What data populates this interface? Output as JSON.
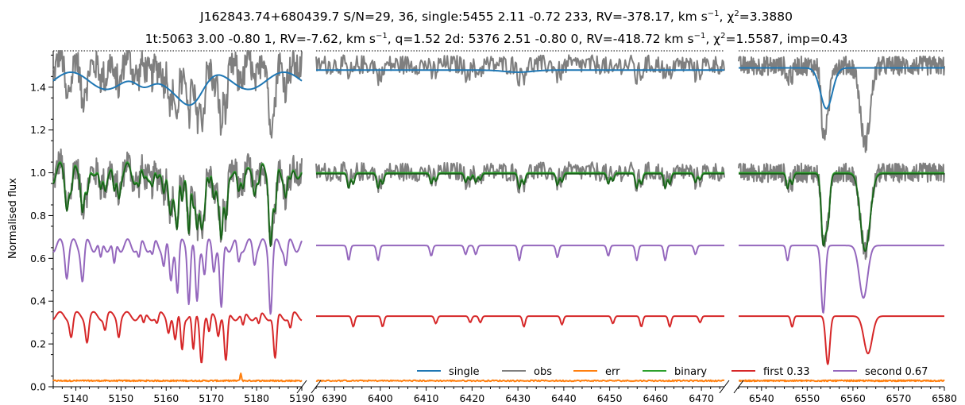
{
  "chart_data": {
    "type": "line",
    "title_line1": "J162843.74+680439.7 S/N=29, 36, single:5455 2.11 -0.72 233, RV=-378.17, km s",
    "title_line1_sup": "−1",
    "title_line1_tail": ", χ",
    "title_line1_sup2": "2",
    "title_line1_end": "=3.3880",
    "title_line2": "1t:5063 3.00 -0.80 1, RV=-7.62, km s",
    "title_line2_sup": "−1",
    "title_line2_mid": ", q=1.52 2d: 5376 2.51 -0.80 0, RV=-418.72 km s",
    "title_line2_sup2": "−1",
    "title_line2_tail": ", χ",
    "title_line2_sup3": "2",
    "title_line2_end": "=1.5587, imp=0.43",
    "ylabel": "Normalised flux",
    "ylim": [
      0.0,
      1.57
    ],
    "yticks": [
      "0.0",
      "0.2",
      "0.4",
      "0.6",
      "0.8",
      "1.0",
      "1.2",
      "1.4"
    ],
    "ytick_values": [
      0.0,
      0.2,
      0.4,
      0.6,
      0.8,
      1.0,
      1.2,
      1.4
    ],
    "panels": [
      {
        "xlim": [
          5135,
          5190
        ],
        "xticks": [
          5140,
          5150,
          5160,
          5170,
          5180,
          5190
        ],
        "xtick_labels": [
          "5140",
          "5150",
          "5160",
          "5170",
          "5180",
          "5190"
        ]
      },
      {
        "xlim": [
          6386,
          6475
        ],
        "xticks": [
          6390,
          6400,
          6410,
          6420,
          6430,
          6440,
          6450,
          6460,
          6470
        ],
        "xtick_labels": [
          "6390",
          "6400",
          "6410",
          "6420",
          "6430",
          "6440",
          "6450",
          "6460",
          "6470"
        ]
      },
      {
        "xlim": [
          6535,
          6580
        ],
        "xticks": [
          6540,
          6550,
          6560,
          6570,
          6580
        ],
        "xtick_labels": [
          "6540",
          "6550",
          "6560",
          "6570",
          "6580"
        ]
      }
    ],
    "series": [
      {
        "name": "single",
        "color": "#1f77b4",
        "offset": 0.5
      },
      {
        "name": "obs",
        "color": "#7f7f7f",
        "offset": 0.0
      },
      {
        "name": "err",
        "color": "#ff7f0e",
        "offset": 0.0
      },
      {
        "name": "binary",
        "color": "#2ca02c",
        "offset": 0.0
      },
      {
        "name": "first 0.33",
        "color": "#d62728",
        "offset": 0.0
      },
      {
        "name": "second 0.67",
        "color": "#9467bd",
        "offset": 0.0
      }
    ],
    "overlay_color": "#1a5c1a",
    "lines": {
      "panel1": [
        {
          "center": 5138.5,
          "depth": 0.18,
          "width": 0.35
        },
        {
          "center": 5142.0,
          "depth": 0.22,
          "width": 0.35
        },
        {
          "center": 5146.0,
          "depth": 0.12,
          "width": 0.3
        },
        {
          "center": 5149.0,
          "depth": 0.16,
          "width": 0.3
        },
        {
          "center": 5154.5,
          "depth": 0.1,
          "width": 0.3
        },
        {
          "center": 5157.5,
          "depth": 0.08,
          "width": 0.3
        },
        {
          "center": 5160.0,
          "depth": 0.12,
          "width": 0.3
        },
        {
          "center": 5161.5,
          "depth": 0.25,
          "width": 0.35
        },
        {
          "center": 5163.0,
          "depth": 0.3,
          "width": 0.3
        },
        {
          "center": 5165.5,
          "depth": 0.35,
          "width": 0.3
        },
        {
          "center": 5167.3,
          "depth": 0.4,
          "width": 0.35
        },
        {
          "center": 5169.0,
          "depth": 0.18,
          "width": 0.3
        },
        {
          "center": 5171.0,
          "depth": 0.15,
          "width": 0.3
        },
        {
          "center": 5172.7,
          "depth": 0.45,
          "width": 0.35
        },
        {
          "center": 5176.5,
          "depth": 0.12,
          "width": 0.3
        },
        {
          "center": 5180.0,
          "depth": 0.1,
          "width": 0.3
        },
        {
          "center": 5183.6,
          "depth": 0.42,
          "width": 0.35
        },
        {
          "center": 5187.0,
          "depth": 0.12,
          "width": 0.3
        }
      ],
      "panel2": [
        {
          "center": 6393.6,
          "depth": 0.1,
          "width": 0.3
        },
        {
          "center": 6400.0,
          "depth": 0.1,
          "width": 0.3
        },
        {
          "center": 6411.6,
          "depth": 0.07,
          "width": 0.3
        },
        {
          "center": 6419.1,
          "depth": 0.06,
          "width": 0.3
        },
        {
          "center": 6421.3,
          "depth": 0.06,
          "width": 0.3
        },
        {
          "center": 6430.8,
          "depth": 0.1,
          "width": 0.3
        },
        {
          "center": 6439.1,
          "depth": 0.08,
          "width": 0.3
        },
        {
          "center": 6450.2,
          "depth": 0.07,
          "width": 0.3
        },
        {
          "center": 6456.4,
          "depth": 0.1,
          "width": 0.3
        },
        {
          "center": 6462.6,
          "depth": 0.1,
          "width": 0.3
        },
        {
          "center": 6469.2,
          "depth": 0.06,
          "width": 0.3
        }
      ],
      "panel3": [
        {
          "center": 6546.2,
          "depth": 0.1,
          "width": 0.3
        },
        {
          "center": 6554.0,
          "depth": 0.45,
          "width": 0.45
        },
        {
          "center": 6562.8,
          "depth": 0.35,
          "width": 0.9
        }
      ]
    }
  },
  "legend": [
    {
      "label": "single",
      "color": "#1f77b4"
    },
    {
      "label": "obs",
      "color": "#7f7f7f"
    },
    {
      "label": "err",
      "color": "#ff7f0e"
    },
    {
      "label": "binary",
      "color": "#2ca02c"
    },
    {
      "label": "first 0.33",
      "color": "#d62728"
    },
    {
      "label": "second 0.67",
      "color": "#9467bd"
    }
  ]
}
